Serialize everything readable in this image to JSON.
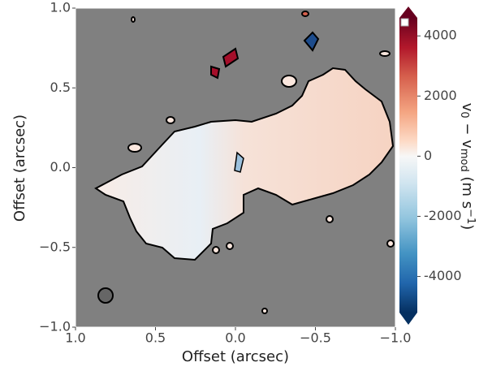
{
  "chart_data": {
    "type": "image",
    "xlabel": "Offset (arcsec)",
    "ylabel": "Offset (arcsec)",
    "xlim": [
      1.0,
      -1.0
    ],
    "ylim": [
      -1.0,
      1.0
    ],
    "xticks": [
      {
        "value": 1.0,
        "label": "1.0"
      },
      0.5,
      {
        "value": 0.0,
        "label": "0.0"
      },
      {
        "value": -0.5,
        "label": "−0.5"
      },
      {
        "value": -1.0,
        "label": "−1.0"
      }
    ],
    "yticks": [
      {
        "value": -1.0,
        "label": "−1.0"
      },
      {
        "value": -0.5,
        "label": "−0.5"
      },
      {
        "value": 0.0,
        "label": "0.0"
      },
      0.5,
      {
        "value": 1.0,
        "label": "1.0"
      }
    ],
    "colorbar": {
      "lim": [
        -5200,
        4600
      ],
      "ticks": [
        -4000,
        -2000,
        0,
        2000,
        4000
      ],
      "label_parts": [
        "v",
        "0",
        " − v",
        "mod",
        "   (m s",
        "−1",
        ")"
      ],
      "label_styles": [
        "normal",
        "sub",
        "normal",
        "sub",
        "normal",
        "sup",
        "normal"
      ]
    }
  }
}
